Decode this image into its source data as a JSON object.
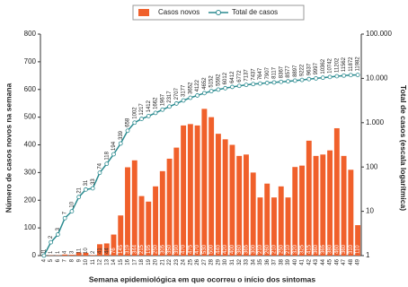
{
  "chart_data": {
    "type": "bar",
    "x_label": "Semana epidemiológica em que ocorreu o início dos sintomas",
    "y_label": "Número de casos novos na semana",
    "y2_label": "Total de casos (escala logarítmica)",
    "categories": [
      "4",
      "5",
      "6",
      "7",
      "8",
      "9",
      "10",
      "11",
      "12",
      "13",
      "14",
      "15",
      "16",
      "17",
      "18",
      "19",
      "20",
      "21",
      "22",
      "23",
      "24",
      "25",
      "26",
      "27",
      "28",
      "29",
      "30",
      "31",
      "32",
      "33",
      "34",
      "35",
      "36",
      "37",
      "38",
      "39",
      "40",
      "41",
      "42",
      "43",
      "44",
      "45",
      "46",
      "47",
      "48",
      "49"
    ],
    "series": [
      {
        "name": "Casos novos",
        "type": "bar",
        "color": "#f0602b",
        "values": [
          1,
          1,
          1,
          4,
          3,
          11,
          10,
          2,
          41,
          44,
          76,
          145,
          319,
          344,
          215,
          195,
          250,
          305,
          350,
          390,
          470,
          475,
          470,
          530,
          500,
          440,
          420,
          400,
          360,
          365,
          300,
          210,
          260,
          210,
          250,
          210,
          320,
          325,
          415,
          360,
          365,
          380,
          460,
          360,
          310,
          110
        ]
      },
      {
        "name": "Total de casos",
        "type": "line",
        "axis": "y2",
        "color": "#2a8a8f",
        "values": [
          1,
          2,
          3,
          7,
          10,
          21,
          31,
          33,
          74,
          118,
          194,
          339,
          658,
          1002,
          1217,
          1412,
          1662,
          1967,
          2317,
          2707,
          3177,
          3652,
          4122,
          4652,
          5152,
          5592,
          6012,
          6412,
          6772,
          7137,
          7437,
          7647,
          7907,
          8117,
          8367,
          8577,
          8897,
          9222,
          9637,
          9997,
          10362,
          10742,
          11202,
          11562,
          11872,
          11982
        ]
      }
    ],
    "ylim": [
      0,
      800
    ],
    "yticks": [
      0,
      100,
      200,
      300,
      400,
      500,
      600,
      700,
      800
    ],
    "y2_scale": "log",
    "y2lim": [
      1,
      100000
    ],
    "y2ticks": [
      1,
      10,
      100,
      {
        "value": 1000,
        "label": "1.000"
      },
      {
        "value": 10000,
        "label": "10.000"
      },
      {
        "value": 100000,
        "label": "100.000"
      }
    ],
    "legend": "top"
  }
}
